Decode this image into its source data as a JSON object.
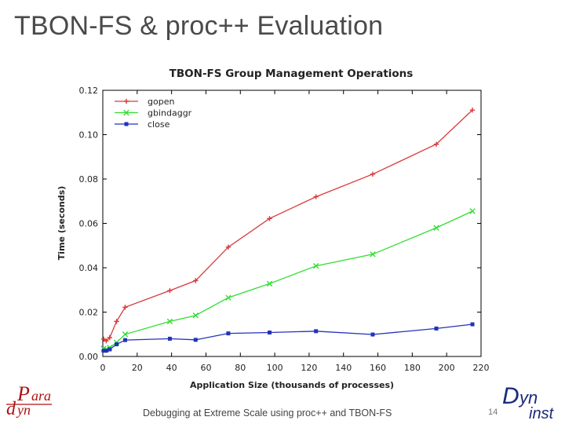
{
  "slide": {
    "title": "TBON-FS & proc++ Evaluation",
    "footer": "Debugging at Extreme Scale using proc++ and TBON-FS",
    "page_number": "14",
    "logo_left": "Paradyn",
    "logo_right": "Dyninst"
  },
  "colors": {
    "gopen": "#d93a3a",
    "gbindaggr": "#33dd33",
    "close": "#2233bb"
  },
  "chart_data": {
    "type": "line",
    "title": "TBON-FS Group Management Operations",
    "xlabel": "Application Size (thousands of processes)",
    "ylabel": "Time (seconds)",
    "xlim": [
      0,
      220
    ],
    "ylim": [
      0,
      0.12
    ],
    "xticks": [
      "0",
      "20",
      "40",
      "60",
      "80",
      "100",
      "120",
      "140",
      "160",
      "180",
      "200",
      "220"
    ],
    "yticks": [
      "0.00",
      "0.02",
      "0.04",
      "0.06",
      "0.08",
      "0.10",
      "0.12"
    ],
    "legend_position": "top-left",
    "series": [
      {
        "name": "gopen",
        "marker": "plus",
        "points": [
          [
            0.5,
            0.0078
          ],
          [
            2,
            0.007
          ],
          [
            4,
            0.0085
          ],
          [
            8,
            0.0158
          ],
          [
            13,
            0.0222
          ],
          [
            39,
            0.0297
          ],
          [
            54,
            0.0342
          ],
          [
            73,
            0.0493
          ],
          [
            97,
            0.0622
          ],
          [
            124,
            0.072
          ],
          [
            157,
            0.0822
          ],
          [
            194,
            0.0957
          ],
          [
            215,
            0.1111
          ]
        ]
      },
      {
        "name": "gbindaggr",
        "marker": "cross",
        "points": [
          [
            0.5,
            0.0035
          ],
          [
            2,
            0.0032
          ],
          [
            4,
            0.004
          ],
          [
            8,
            0.0063
          ],
          [
            13,
            0.01
          ],
          [
            39,
            0.0158
          ],
          [
            54,
            0.0185
          ],
          [
            73,
            0.0265
          ],
          [
            97,
            0.0328
          ],
          [
            124,
            0.0408
          ],
          [
            157,
            0.0461
          ],
          [
            194,
            0.058
          ],
          [
            215,
            0.0655
          ]
        ]
      },
      {
        "name": "close",
        "marker": "square",
        "points": [
          [
            0.5,
            0.0026
          ],
          [
            2,
            0.0026
          ],
          [
            4,
            0.0032
          ],
          [
            8,
            0.0055
          ],
          [
            13,
            0.0074
          ],
          [
            39,
            0.008
          ],
          [
            54,
            0.0075
          ],
          [
            73,
            0.0104
          ],
          [
            97,
            0.0108
          ],
          [
            124,
            0.0114
          ],
          [
            157,
            0.0099
          ],
          [
            194,
            0.0126
          ],
          [
            215,
            0.0145
          ]
        ]
      }
    ]
  }
}
